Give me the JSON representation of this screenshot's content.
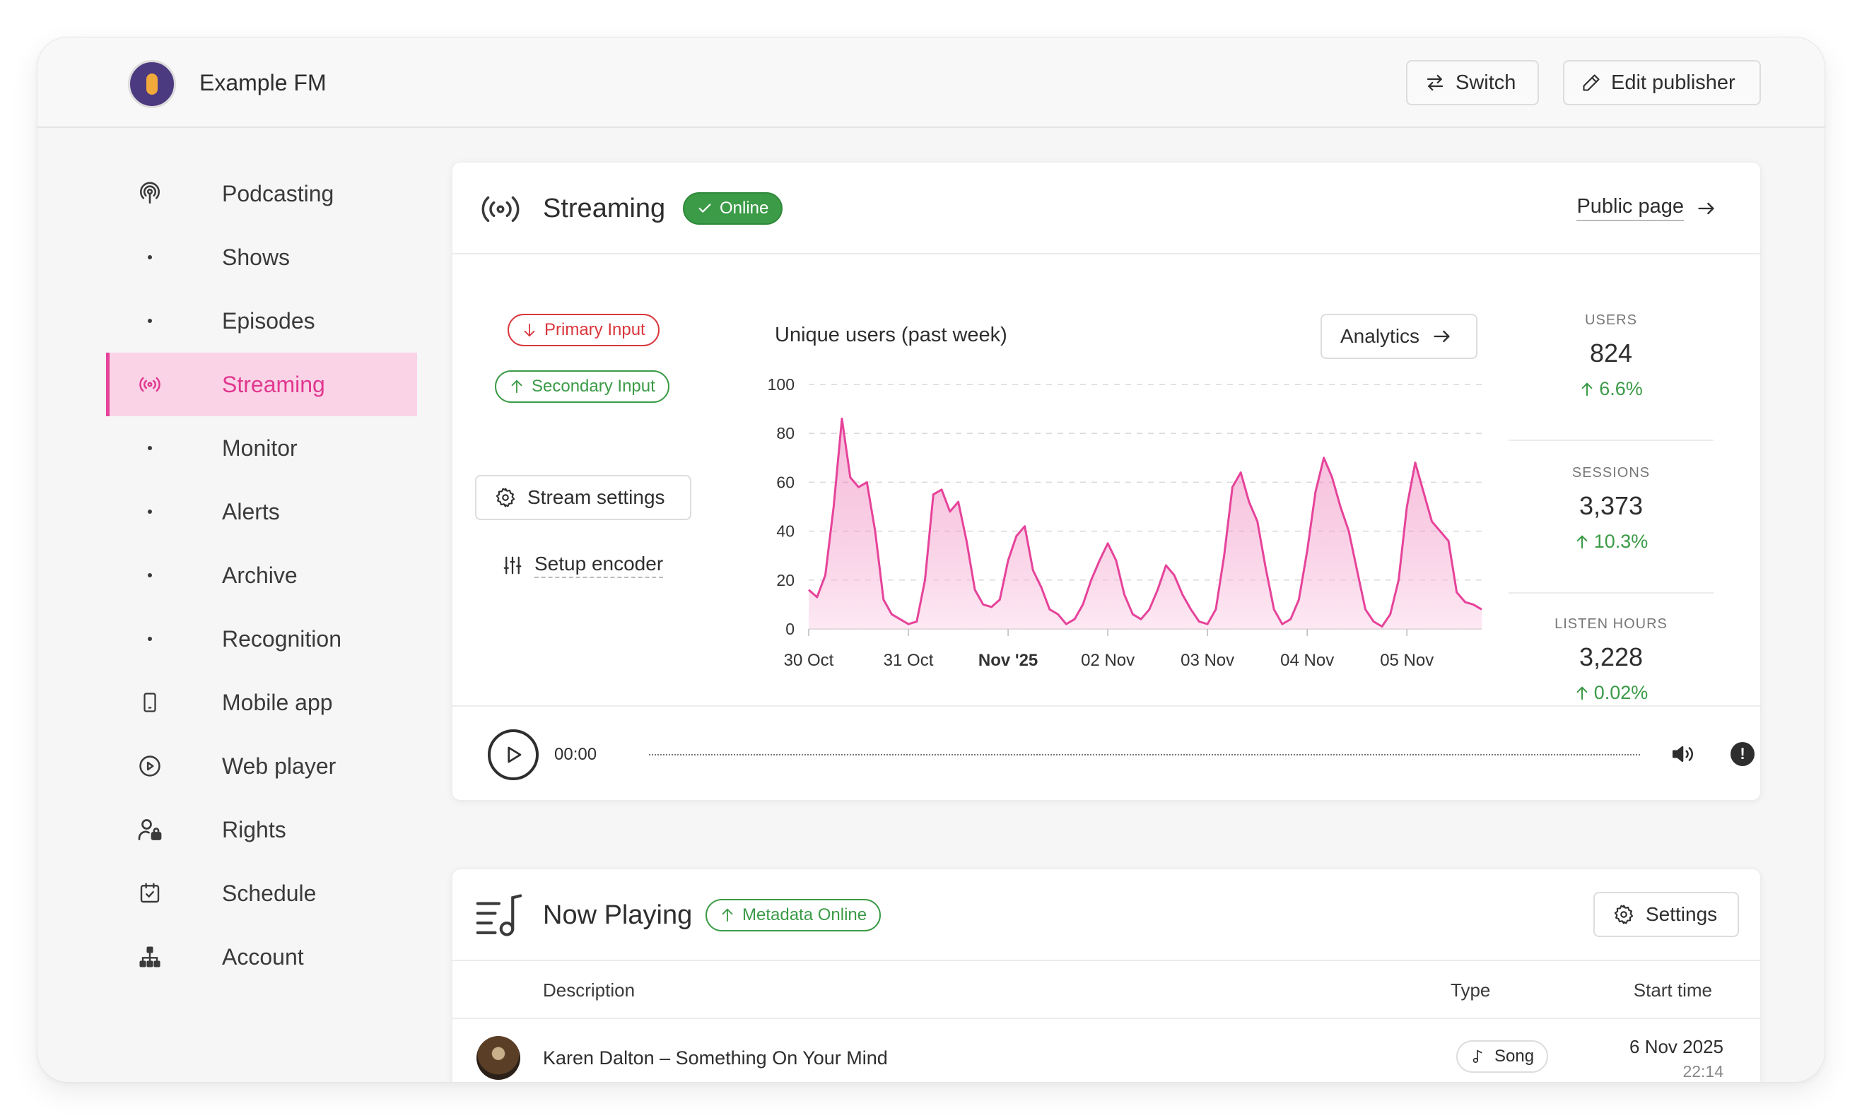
{
  "header": {
    "publisher_name": "Example FM",
    "switch_label": "Switch",
    "edit_label": "Edit publisher"
  },
  "sidebar": {
    "items": [
      {
        "label": "Podcasting",
        "icon": "podcast-icon"
      },
      {
        "label": "Shows",
        "icon": "dot"
      },
      {
        "label": "Episodes",
        "icon": "dot"
      },
      {
        "label": "Streaming",
        "icon": "broadcast-icon",
        "active": true
      },
      {
        "label": "Monitor",
        "icon": "dot"
      },
      {
        "label": "Alerts",
        "icon": "dot"
      },
      {
        "label": "Archive",
        "icon": "dot"
      },
      {
        "label": "Recognition",
        "icon": "dot"
      },
      {
        "label": "Mobile app",
        "icon": "mobile-icon"
      },
      {
        "label": "Web player",
        "icon": "play-circle-icon"
      },
      {
        "label": "Rights",
        "icon": "user-lock-icon"
      },
      {
        "label": "Schedule",
        "icon": "calendar-check-icon"
      },
      {
        "label": "Account",
        "icon": "org-chart-icon"
      }
    ]
  },
  "streaming": {
    "title": "Streaming",
    "status": "Online",
    "public_page_label": "Public page",
    "primary_input": "Primary Input",
    "secondary_input": "Secondary Input",
    "stream_settings_label": "Stream settings",
    "setup_encoder_label": "Setup encoder",
    "analytics_label": "Analytics",
    "stats": [
      {
        "label": "USERS",
        "value": "824",
        "change": "6.6%"
      },
      {
        "label": "SESSIONS",
        "value": "3,373",
        "change": "10.3%"
      },
      {
        "label": "LISTEN HOURS",
        "value": "3,228",
        "change": "0.02%"
      }
    ],
    "player": {
      "time": "00:00"
    }
  },
  "chart_data": {
    "type": "area",
    "title": "Unique users (past week)",
    "xlabel": "",
    "ylabel": "",
    "ylim": [
      0,
      100
    ],
    "yticks": [
      0,
      20,
      40,
      60,
      80,
      100
    ],
    "xticks": [
      "30 Oct",
      "31 Oct",
      "Nov '25",
      "02 Nov",
      "03 Nov",
      "04 Nov",
      "05 Nov"
    ],
    "grid": true,
    "color": "#e6439a",
    "fill": "#fbd3e7",
    "step_hours": 2,
    "values": [
      16,
      13,
      22,
      50,
      86,
      62,
      58,
      60,
      40,
      12,
      6,
      4,
      2,
      3,
      20,
      55,
      57,
      48,
      52,
      36,
      16,
      10,
      9,
      12,
      28,
      38,
      42,
      24,
      17,
      8,
      6,
      2,
      4,
      10,
      20,
      28,
      35,
      28,
      14,
      6,
      4,
      8,
      16,
      26,
      22,
      14,
      8,
      3,
      2,
      8,
      30,
      58,
      64,
      52,
      44,
      25,
      8,
      2,
      4,
      12,
      32,
      56,
      70,
      62,
      50,
      40,
      24,
      8,
      3,
      1,
      6,
      20,
      50,
      68,
      56,
      44,
      40,
      36,
      15,
      11,
      10,
      8
    ],
    "series": [
      {
        "name": "Unique users",
        "values": "see values"
      }
    ]
  },
  "now_playing": {
    "title": "Now Playing",
    "status": "Metadata Online",
    "settings_label": "Settings",
    "columns": {
      "description": "Description",
      "type": "Type",
      "start_time": "Start time"
    },
    "rows": [
      {
        "description": "Karen Dalton – Something On Your Mind",
        "type": "Song",
        "date": "6 Nov 2025",
        "time": "22:14"
      }
    ]
  }
}
